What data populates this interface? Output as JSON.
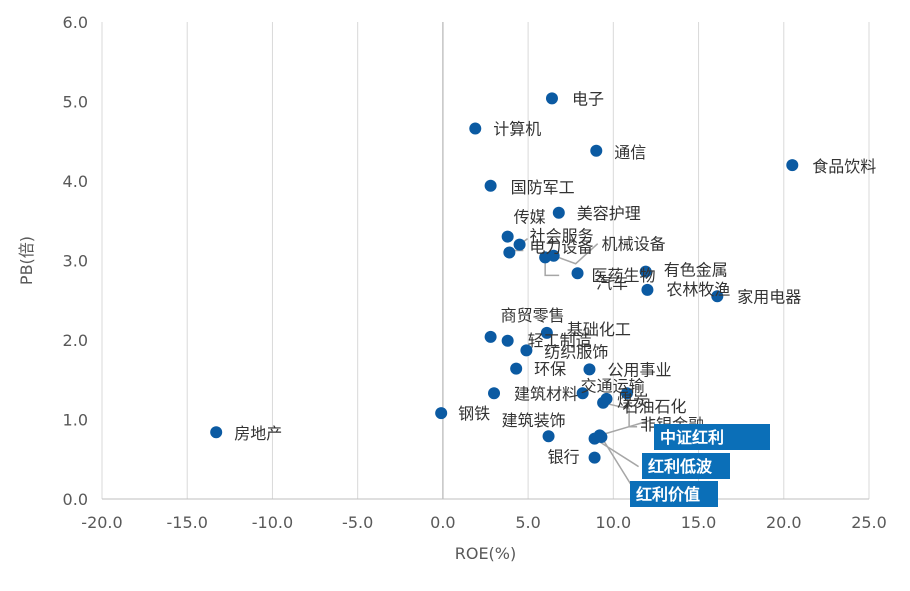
{
  "chart_data": {
    "type": "scatter",
    "title": "",
    "xlabel": "ROE(%)",
    "ylabel": "PB(倍)",
    "xlim": [
      -20,
      25
    ],
    "ylim": [
      0,
      6
    ],
    "x_ticks": [
      "-20.0",
      "-15.0",
      "-10.0",
      "-5.0",
      "0.0",
      "5.0",
      "10.0",
      "15.0",
      "20.0",
      "25.0"
    ],
    "y_ticks": [
      "0.0",
      "1.0",
      "2.0",
      "3.0",
      "4.0",
      "5.0",
      "6.0"
    ],
    "grid": "vertical",
    "marker_color": "#0b5aa2",
    "highlight_color": "#0b6fb8",
    "points": [
      {
        "name": "电子",
        "x": 6.4,
        "y": 5.04
      },
      {
        "name": "计算机",
        "x": 1.9,
        "y": 4.66
      },
      {
        "name": "通信",
        "x": 9.0,
        "y": 4.38
      },
      {
        "name": "食品饮料",
        "x": 20.5,
        "y": 4.2
      },
      {
        "name": "国防军工",
        "x": 2.8,
        "y": 3.94
      },
      {
        "name": "美容护理",
        "x": 6.8,
        "y": 3.6
      },
      {
        "name": "传媒",
        "x": 3.8,
        "y": 3.3
      },
      {
        "name": "社会服务",
        "x": 4.5,
        "y": 3.2
      },
      {
        "name": "机械设备",
        "x": 6.5,
        "y": 3.06
      },
      {
        "name": "电力设备",
        "x": 3.9,
        "y": 3.1
      },
      {
        "name": "医药生物",
        "x": 7.9,
        "y": 2.84
      },
      {
        "name": "汽车",
        "x": 6.0,
        "y": 3.04
      },
      {
        "name": "有色金属",
        "x": 11.9,
        "y": 2.86
      },
      {
        "name": "农林牧渔",
        "x": 12.0,
        "y": 2.63
      },
      {
        "name": "家用电器",
        "x": 16.1,
        "y": 2.55
      },
      {
        "name": "商贸零售",
        "x": 2.8,
        "y": 2.04
      },
      {
        "name": "基础化工",
        "x": 6.1,
        "y": 2.09
      },
      {
        "name": "轻工制造",
        "x": 3.8,
        "y": 1.99
      },
      {
        "name": "纺织服饰",
        "x": 4.9,
        "y": 1.87
      },
      {
        "name": "环保",
        "x": 4.3,
        "y": 1.64
      },
      {
        "name": "公用事业",
        "x": 8.6,
        "y": 1.63
      },
      {
        "name": "建筑材料",
        "x": 3.0,
        "y": 1.33
      },
      {
        "name": "交通运输",
        "x": 8.2,
        "y": 1.33
      },
      {
        "name": "煤炭",
        "x": 10.8,
        "y": 1.33
      },
      {
        "name": "石油石化",
        "x": 9.6,
        "y": 1.26
      },
      {
        "name": "非银金融",
        "x": 9.4,
        "y": 1.21
      },
      {
        "name": "钢铁",
        "x": -0.1,
        "y": 1.08
      },
      {
        "name": "房地产",
        "x": -13.3,
        "y": 0.84
      },
      {
        "name": "建筑装饰",
        "x": 6.2,
        "y": 0.79
      },
      {
        "name": "银行",
        "x": 8.9,
        "y": 0.52
      },
      {
        "name": "中证红利",
        "x": 9.2,
        "y": 0.8,
        "highlight": true
      },
      {
        "name": "红利低波",
        "x": 8.9,
        "y": 0.76,
        "highlight": true
      },
      {
        "name": "红利价值",
        "x": 9.3,
        "y": 0.78,
        "highlight": true
      }
    ]
  }
}
